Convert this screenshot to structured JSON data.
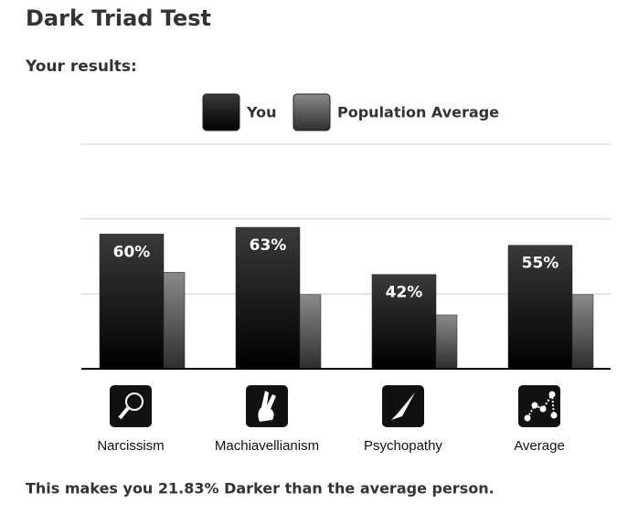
{
  "title": "Dark Triad Test",
  "subtitle": "Your results:",
  "chart_data": {
    "type": "bar",
    "categories": [
      "Narcissism",
      "Machiavellianism",
      "Psychopathy",
      "Average"
    ],
    "series": [
      {
        "name": "You",
        "color": "#1a1a1a",
        "values": [
          60,
          63,
          42,
          55
        ],
        "value_labels": [
          "60%",
          "63%",
          "42%",
          "55%"
        ]
      },
      {
        "name": "Population Average",
        "color": "#666666",
        "values": [
          43,
          33,
          24,
          33
        ]
      }
    ],
    "ylim": [
      0,
      100
    ],
    "yticks": [
      33.3,
      66.7,
      100
    ],
    "grid": true
  },
  "footer": "This makes you 21.83% Darker than the average person."
}
